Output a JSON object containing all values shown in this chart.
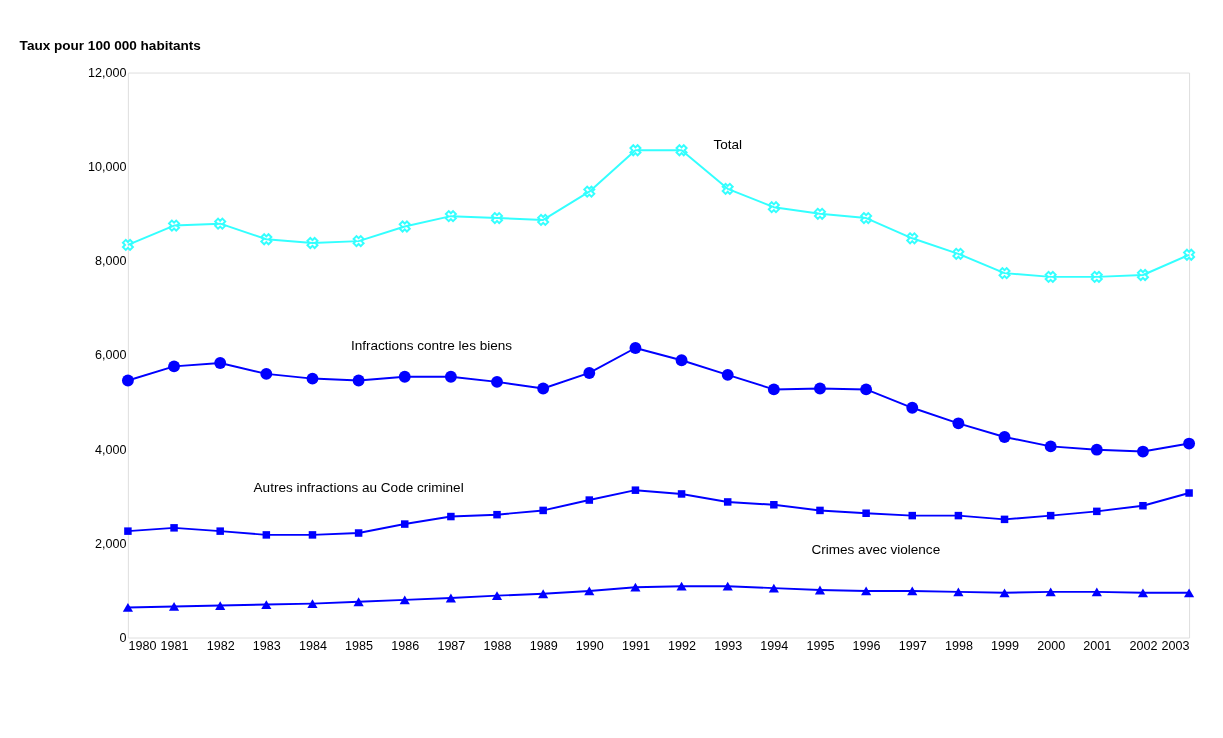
{
  "chart_data": {
    "type": "line",
    "ylabel": "Taux pour 100 000 habitants",
    "x": [
      1980,
      1981,
      1982,
      1983,
      1984,
      1985,
      1986,
      1987,
      1988,
      1989,
      1990,
      1991,
      1992,
      1993,
      1994,
      1995,
      1996,
      1997,
      1998,
      1999,
      2000,
      2001,
      2002,
      2003
    ],
    "xlim": [
      1980,
      2003
    ],
    "xticks": [
      1980,
      1981,
      1982,
      1983,
      1984,
      1985,
      1986,
      1987,
      1988,
      1989,
      1990,
      1991,
      1992,
      1993,
      1994,
      1995,
      1996,
      1997,
      1998,
      1999,
      2000,
      2001,
      2002,
      2003
    ],
    "ylim": [
      0,
      12000
    ],
    "yticks": [
      0,
      {
        "value": 2000,
        "label": "2,000"
      },
      {
        "value": 4000,
        "label": "4,000"
      },
      {
        "value": 6000,
        "label": "6,000"
      },
      {
        "value": 8000,
        "label": "8,000"
      },
      {
        "value": 10000,
        "label": "10,000"
      },
      {
        "value": 12000,
        "label": "12,000"
      }
    ],
    "legend": false,
    "grid": false,
    "line_style": "solid",
    "series": [
      {
        "name": "Total",
        "color": "#33ffff",
        "marker": "cross",
        "values": [
          8340,
          8750,
          8790,
          8460,
          8380,
          8420,
          8730,
          8950,
          8910,
          8870,
          9470,
          10350,
          10350,
          9530,
          9140,
          9000,
          8910,
          8480,
          8150,
          7740,
          7660,
          7660,
          7700,
          8130
        ]
      },
      {
        "name": "Infractions contre les biens",
        "color": "#0000ff",
        "marker": "circle",
        "values": [
          5460,
          5760,
          5830,
          5600,
          5500,
          5460,
          5540,
          5540,
          5430,
          5290,
          5620,
          6150,
          5890,
          5580,
          5270,
          5290,
          5270,
          4880,
          4550,
          4260,
          4060,
          3990,
          3950,
          4120
        ]
      },
      {
        "name": "Autres infractions au Code criminel",
        "color": "#0000ff",
        "marker": "square",
        "values": [
          2260,
          2330,
          2260,
          2180,
          2180,
          2220,
          2410,
          2570,
          2610,
          2700,
          2920,
          3130,
          3050,
          2880,
          2820,
          2700,
          2640,
          2590,
          2590,
          2510,
          2590,
          2680,
          2800,
          3070
        ]
      },
      {
        "name": "Crimes avec violence",
        "color": "#0000ff",
        "marker": "triangle",
        "values": [
          640,
          660,
          680,
          700,
          720,
          760,
          800,
          840,
          890,
          930,
          990,
          1070,
          1090,
          1090,
          1050,
          1010,
          990,
          990,
          970,
          950,
          970,
          970,
          950,
          950
        ]
      }
    ]
  }
}
